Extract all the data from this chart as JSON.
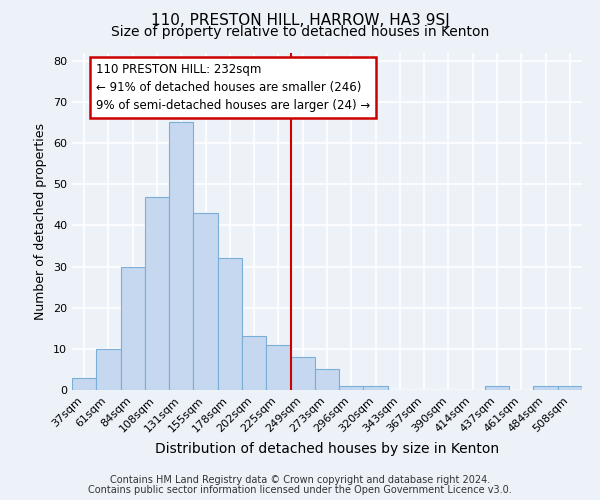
{
  "title": "110, PRESTON HILL, HARROW, HA3 9SJ",
  "subtitle": "Size of property relative to detached houses in Kenton",
  "xlabel": "Distribution of detached houses by size in Kenton",
  "ylabel": "Number of detached properties",
  "footer_line1": "Contains HM Land Registry data © Crown copyright and database right 2024.",
  "footer_line2": "Contains public sector information licensed under the Open Government Licence v3.0.",
  "bin_labels": [
    "37sqm",
    "61sqm",
    "84sqm",
    "108sqm",
    "131sqm",
    "155sqm",
    "178sqm",
    "202sqm",
    "225sqm",
    "249sqm",
    "273sqm",
    "296sqm",
    "320sqm",
    "343sqm",
    "367sqm",
    "390sqm",
    "414sqm",
    "437sqm",
    "461sqm",
    "484sqm",
    "508sqm"
  ],
  "bar_heights": [
    3,
    10,
    30,
    47,
    65,
    43,
    32,
    13,
    11,
    8,
    5,
    1,
    1,
    0,
    0,
    0,
    0,
    1,
    0,
    1,
    1
  ],
  "bar_color": "#c5d8f0",
  "bar_edge_color": "#7aaed6",
  "vline_x_bin": 8.5,
  "vline_color": "#cc0000",
  "annotation_title": "110 PRESTON HILL: 232sqm",
  "annotation_line1": "← 91% of detached houses are smaller (246)",
  "annotation_line2": "9% of semi-detached houses are larger (24) →",
  "annotation_box_color": "#ffffff",
  "annotation_box_edge": "#cc0000",
  "ylim": [
    0,
    82
  ],
  "yticks": [
    0,
    10,
    20,
    30,
    40,
    50,
    60,
    70,
    80
  ],
  "background_color": "#edf2f9",
  "grid_color": "#ffffff",
  "title_fontsize": 11,
  "subtitle_fontsize": 10,
  "xlabel_fontsize": 10,
  "ylabel_fontsize": 9,
  "tick_fontsize": 8,
  "footer_fontsize": 7
}
